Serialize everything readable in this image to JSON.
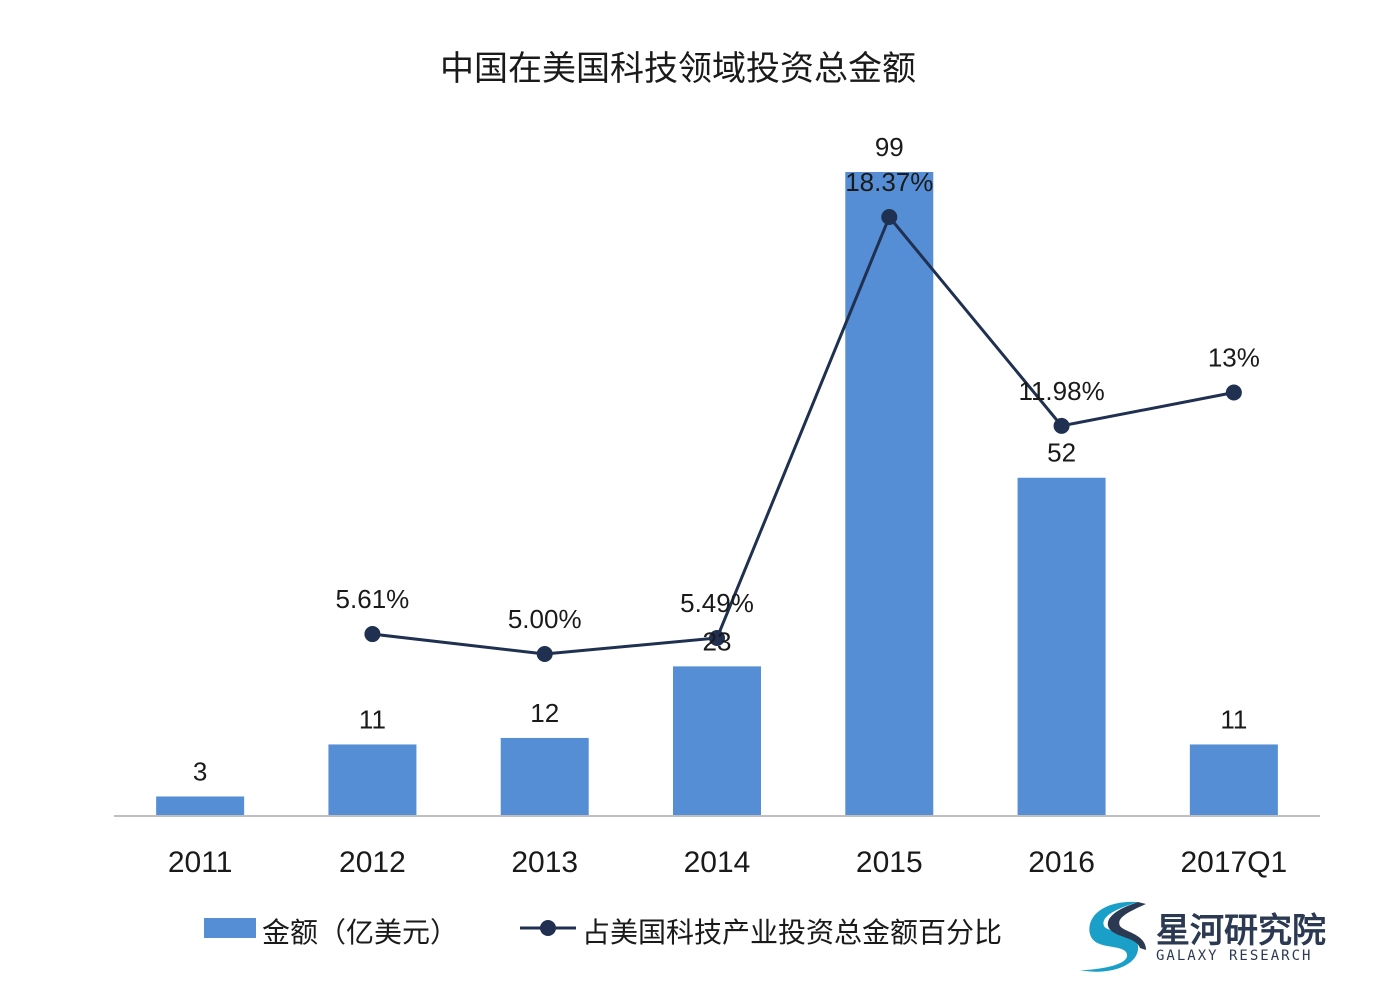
{
  "chart_data": {
    "type": "bar",
    "title": "中国在美国科技领域投资总金额",
    "categories": [
      "2011",
      "2012",
      "2013",
      "2014",
      "2015",
      "2016",
      "2017Q1"
    ],
    "series": [
      {
        "name": "金额（亿美元）",
        "type": "bar",
        "values": [
          3,
          11,
          12,
          23,
          99,
          52,
          11
        ],
        "labels": [
          "3",
          "11",
          "12",
          "23",
          "99",
          "52",
          "11"
        ],
        "color": "#558ed5"
      },
      {
        "name": "占美国科技产业投资总金额百分比",
        "type": "line",
        "values": [
          null,
          5.61,
          5.0,
          5.49,
          18.37,
          11.98,
          13
        ],
        "labels": [
          "",
          "5.61%",
          "5.00%",
          "5.49%",
          "18.37%",
          "11.98%",
          "13%"
        ],
        "color": "#1f3050"
      }
    ],
    "bar_ylim": [
      0,
      100
    ],
    "line_ylim": [
      0,
      20
    ],
    "legend_position": "bottom",
    "grid": false
  },
  "brand": {
    "name": "星河研究院",
    "subtitle": "GALAXY RESEARCH",
    "colors": [
      "#1aa0c8",
      "#2b3a52"
    ]
  }
}
